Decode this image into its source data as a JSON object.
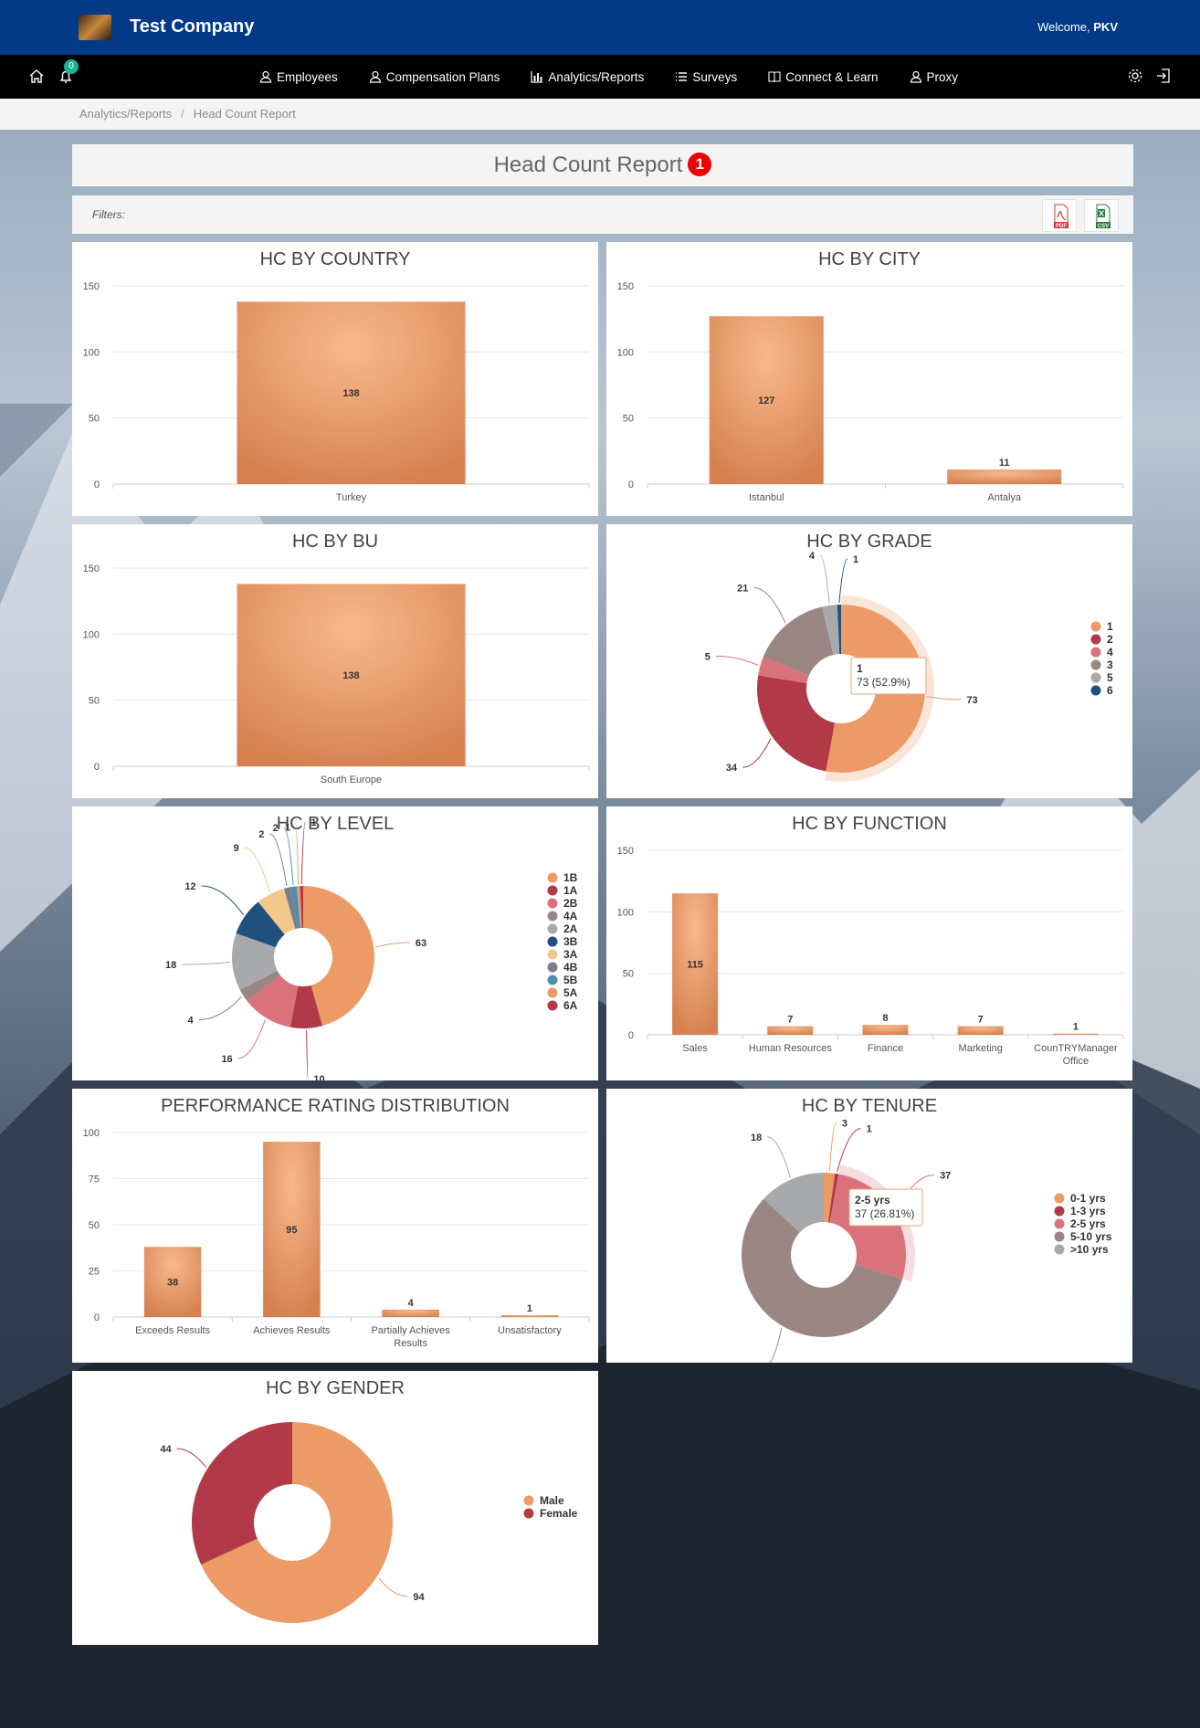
{
  "header": {
    "company": "Test Company",
    "welcome": "Welcome,",
    "user": "PKV"
  },
  "nav": {
    "notification_count": "0",
    "items": [
      {
        "label": "Employees",
        "icon": "user-icon"
      },
      {
        "label": "Compensation Plans",
        "icon": "user-money-icon"
      },
      {
        "label": "Analytics/Reports",
        "icon": "bar-chart-icon"
      },
      {
        "label": "Surveys",
        "icon": "list-icon"
      },
      {
        "label": "Connect & Learn",
        "icon": "book-icon"
      },
      {
        "label": "Proxy",
        "icon": "user-icon"
      }
    ]
  },
  "breadcrumb": {
    "parent": "Analytics/Reports",
    "current": "Head Count Report"
  },
  "page": {
    "title": "Head Count Report",
    "title_badge": "1",
    "filters_label": "Filters:",
    "export_pdf": "PDF",
    "export_csv": "CSV"
  },
  "colors": {
    "orange": "#ec9a66",
    "crimson": "#b23a48",
    "pink": "#d9727b",
    "taupe": "#9a8683",
    "navy": "#20507e",
    "gray": "#a8a9ad",
    "sand": "#f2c98b",
    "steel": "#7b7d8a",
    "teal": "#4a8fb0"
  },
  "chart_data": [
    {
      "id": "country",
      "type": "bar",
      "title": "HC BY COUNTRY",
      "categories": [
        "Turkey"
      ],
      "values": [
        138
      ],
      "ylim": [
        0,
        150
      ],
      "yticks": [
        0,
        50,
        100,
        150
      ]
    },
    {
      "id": "city",
      "type": "bar",
      "title": "HC BY CITY",
      "categories": [
        "Istanbul",
        "Antalya"
      ],
      "values": [
        127,
        11
      ],
      "ylim": [
        0,
        150
      ],
      "yticks": [
        0,
        50,
        100,
        150
      ]
    },
    {
      "id": "bu",
      "type": "bar",
      "title": "HC BY BU",
      "categories": [
        "South Europe"
      ],
      "values": [
        138
      ],
      "ylim": [
        0,
        150
      ],
      "yticks": [
        0,
        50,
        100,
        150
      ]
    },
    {
      "id": "grade",
      "type": "pie",
      "title": "HC BY GRADE",
      "labels": [
        "1",
        "2",
        "4",
        "3",
        "5",
        "6"
      ],
      "values": [
        73,
        34,
        5,
        21,
        4,
        1
      ],
      "colors": [
        "#ec9a66",
        "#b23a48",
        "#d9727b",
        "#9a8683",
        "#a8a9ad",
        "#20507e"
      ],
      "tooltip": {
        "title": "1",
        "text": "73 (52.9%)"
      }
    },
    {
      "id": "level",
      "type": "pie",
      "title": "HC BY LEVEL",
      "labels": [
        "1B",
        "1A",
        "2B",
        "4A",
        "2A",
        "3B",
        "3A",
        "4B",
        "5B",
        "5A",
        "6A"
      ],
      "values": [
        63,
        10,
        16,
        4,
        18,
        12,
        9,
        2,
        2,
        1,
        1
      ],
      "colors": [
        "#ec9a66",
        "#b23a48",
        "#d9727b",
        "#9a8683",
        "#a8a9ad",
        "#20507e",
        "#f2c98b",
        "#7b7d8a",
        "#4a8fb0",
        "#ec9a66",
        "#b23a48"
      ]
    },
    {
      "id": "function",
      "type": "bar",
      "title": "HC BY FUNCTION",
      "categories": [
        "Sales",
        "Human Resources",
        "Finance",
        "Marketing",
        "CounTRYManager Office"
      ],
      "values": [
        115,
        7,
        8,
        7,
        1
      ],
      "ylim": [
        0,
        150
      ],
      "yticks": [
        0,
        50,
        100,
        150
      ]
    },
    {
      "id": "perf",
      "type": "bar",
      "title": "PERFORMANCE RATING DISTRIBUTION",
      "categories": [
        "Exceeds Results",
        "Achieves Results",
        "Partially Achieves Results",
        "Unsatisfactory"
      ],
      "values": [
        38,
        95,
        4,
        1
      ],
      "ylim": [
        0,
        100
      ],
      "yticks": [
        0,
        25,
        50,
        75,
        100
      ]
    },
    {
      "id": "tenure",
      "type": "pie",
      "title": "HC BY TENURE",
      "labels": [
        "0-1 yrs",
        "1-3 yrs",
        "2-5 yrs",
        "5-10 yrs",
        ">10 yrs"
      ],
      "values": [
        3,
        1,
        37,
        79,
        18
      ],
      "colors": [
        "#ec9a66",
        "#b23a48",
        "#d9727b",
        "#9a8683",
        "#a8a9ad"
      ],
      "tooltip": {
        "title": "2-5 yrs",
        "text": "37 (26.81%)"
      }
    },
    {
      "id": "gender",
      "type": "pie",
      "title": "HC BY GENDER",
      "labels": [
        "Male",
        "Female"
      ],
      "values": [
        94,
        44
      ],
      "colors": [
        "#ec9a66",
        "#b23a48"
      ]
    }
  ]
}
